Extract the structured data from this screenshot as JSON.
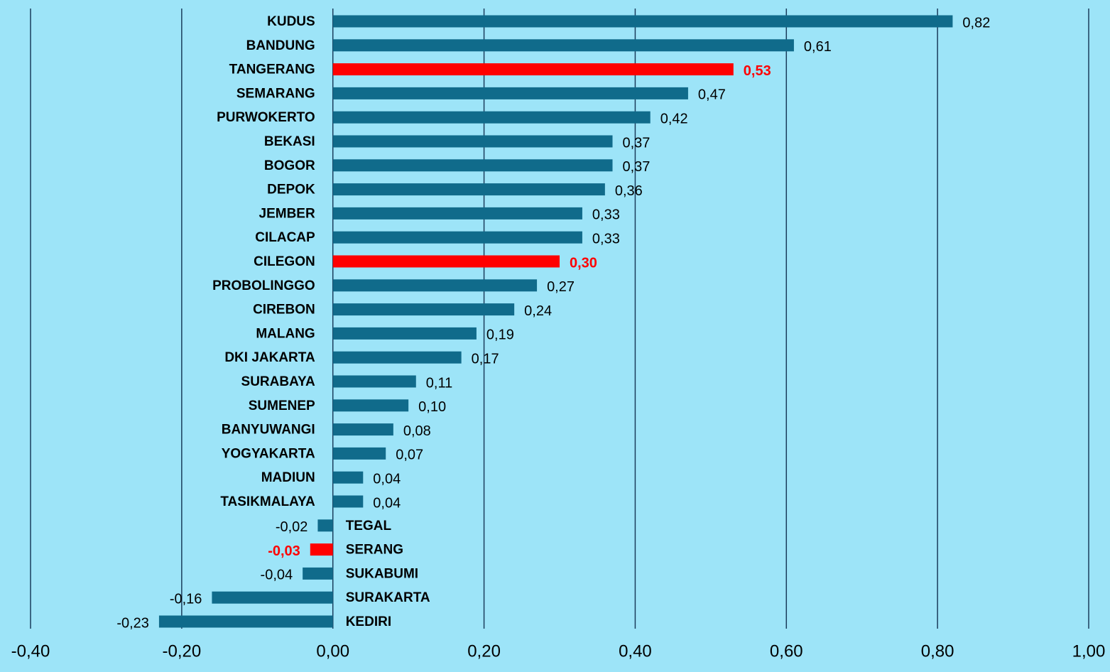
{
  "chart_data": {
    "type": "hbar",
    "categories": [
      "KUDUS",
      "BANDUNG",
      "TANGERANG",
      "SEMARANG",
      "PURWOKERTO",
      "BEKASI",
      "BOGOR",
      "DEPOK",
      "JEMBER",
      "CILACAP",
      "CILEGON",
      "PROBOLINGGO",
      "CIREBON",
      "MALANG",
      "DKI JAKARTA",
      "SURABAYA",
      "SUMENEP",
      "BANYUWANGI",
      "YOGYAKARTA",
      "MADIUN",
      "TASIKMALAYA",
      "TEGAL",
      "SERANG",
      "SUKABUMI",
      "SURAKARTA",
      "KEDIRI"
    ],
    "values": [
      0.82,
      0.61,
      0.53,
      0.47,
      0.42,
      0.37,
      0.37,
      0.36,
      0.33,
      0.33,
      0.3,
      0.27,
      0.24,
      0.19,
      0.17,
      0.11,
      0.1,
      0.08,
      0.07,
      0.04,
      0.04,
      -0.02,
      -0.03,
      -0.04,
      -0.16,
      -0.23
    ],
    "value_labels": [
      "0,82",
      "0,61",
      "0,53",
      "0,47",
      "0,42",
      "0,37",
      "0,37",
      "0,36",
      "0,33",
      "0,33",
      "0,30",
      "0,27",
      "0,24",
      "0,19",
      "0,17",
      "0,11",
      "0,10",
      "0,08",
      "0,07",
      "0,04",
      "0,04",
      "-0,02",
      "-0,03",
      "-0,04",
      "-0,16",
      "-0,23"
    ],
    "color": "#106b8b",
    "colors": [
      "#106b8b",
      "#106b8b",
      "#ff0000",
      "#106b8b",
      "#106b8b",
      "#106b8b",
      "#106b8b",
      "#106b8b",
      "#106b8b",
      "#106b8b",
      "#ff0000",
      "#106b8b",
      "#106b8b",
      "#106b8b",
      "#106b8b",
      "#106b8b",
      "#106b8b",
      "#106b8b",
      "#106b8b",
      "#106b8b",
      "#106b8b",
      "#106b8b",
      "#ff0000",
      "#106b8b",
      "#106b8b",
      "#106b8b"
    ],
    "xlim": [
      -0.4,
      1.0
    ],
    "xticks": [
      {
        "value": -0.4,
        "label": "-0,40"
      },
      {
        "value": -0.2,
        "label": "-0,20"
      },
      {
        "value": 0,
        "label": "0,00"
      },
      {
        "value": 0.2,
        "label": "0,20"
      },
      {
        "value": 0.4,
        "label": "0,40"
      },
      {
        "value": 0.6,
        "label": "0,60"
      },
      {
        "value": 0.8,
        "label": "0,80"
      },
      {
        "value": 1.0,
        "label": "1,00"
      }
    ],
    "grid": true
  }
}
